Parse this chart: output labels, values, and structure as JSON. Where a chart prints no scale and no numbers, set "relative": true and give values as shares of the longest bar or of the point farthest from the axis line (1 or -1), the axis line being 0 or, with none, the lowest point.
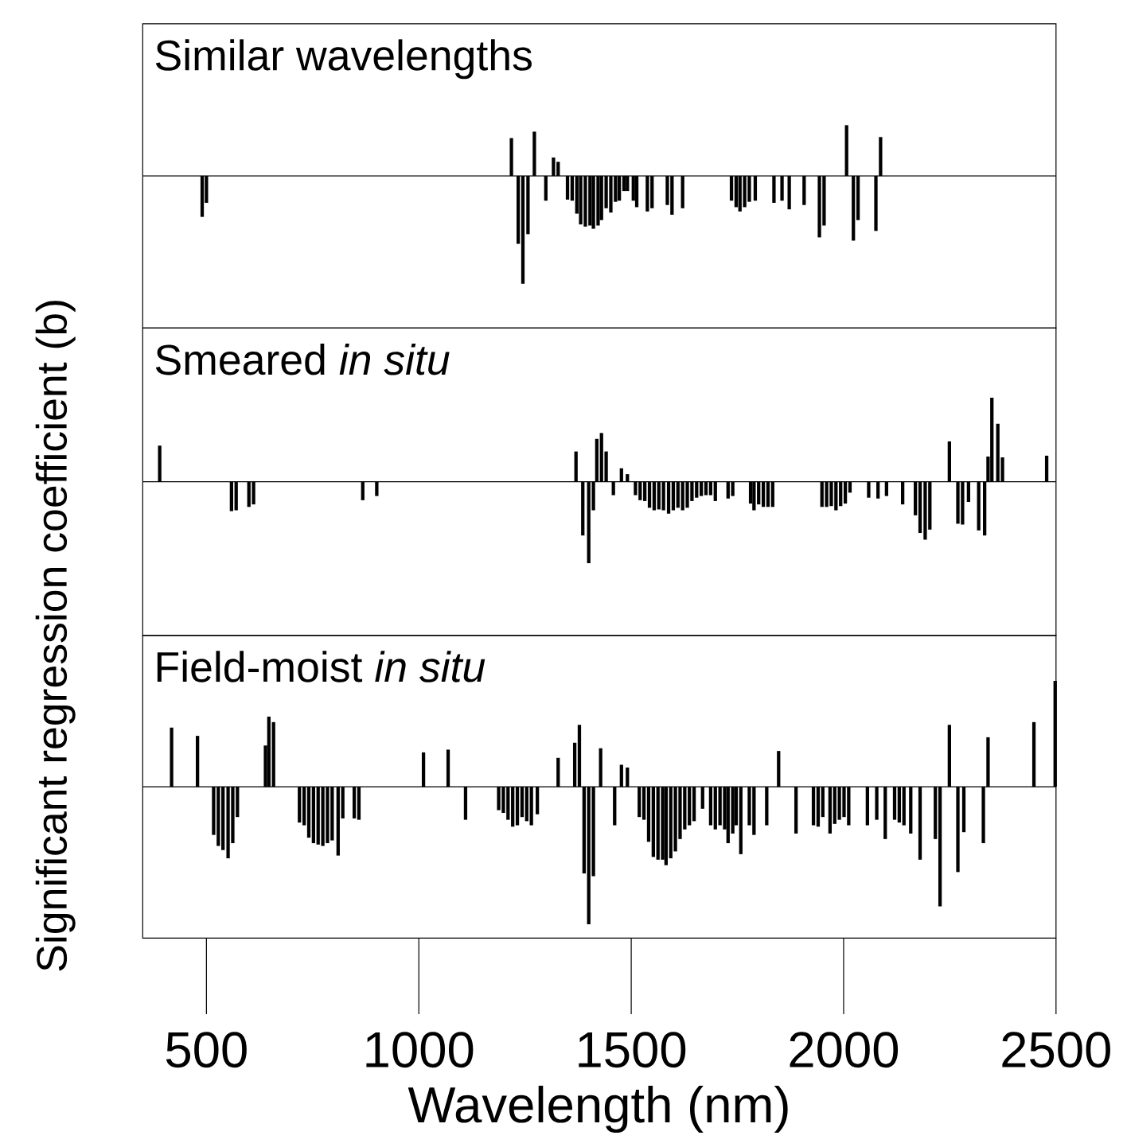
{
  "chart_data": [
    {
      "type": "bar",
      "title": "Similar wavelengths",
      "color": "#000000",
      "relative": true,
      "xlim": [
        350,
        2500
      ],
      "tick_labels": false,
      "x": [
        490,
        500,
        1218,
        1234,
        1245,
        1257,
        1272,
        1299,
        1317,
        1328,
        1350,
        1361,
        1372,
        1381,
        1392,
        1403,
        1411,
        1422,
        1430,
        1441,
        1452,
        1463,
        1472,
        1483,
        1491,
        1505,
        1513,
        1538,
        1549,
        1585,
        1596,
        1621,
        1736,
        1747,
        1756,
        1767,
        1778,
        1792,
        1836,
        1855,
        1872,
        1907,
        1943,
        1954,
        2007,
        2023,
        2034,
        2076,
        2087
      ],
      "values": [
        -0.38,
        -0.25,
        0.35,
        -0.63,
        -1.0,
        -0.54,
        0.41,
        -0.23,
        0.17,
        0.13,
        -0.22,
        -0.23,
        -0.35,
        -0.45,
        -0.47,
        -0.46,
        -0.49,
        -0.46,
        -0.41,
        -0.3,
        -0.34,
        -0.24,
        -0.23,
        -0.14,
        -0.14,
        -0.23,
        -0.29,
        -0.33,
        -0.3,
        -0.27,
        -0.36,
        -0.3,
        -0.23,
        -0.29,
        -0.33,
        -0.29,
        -0.24,
        -0.23,
        -0.25,
        -0.23,
        -0.31,
        -0.27,
        -0.57,
        -0.46,
        0.47,
        -0.6,
        -0.41,
        -0.51,
        0.36
      ]
    },
    {
      "type": "bar",
      "title": "Smeared *in situ*",
      "ylabel": "Significant regression coefficient (b)",
      "color": "#000000",
      "relative": true,
      "xlim": [
        350,
        2500
      ],
      "tick_labels": false,
      "x": [
        390,
        559,
        570,
        600,
        611,
        868,
        901,
        1370,
        1386,
        1400,
        1411,
        1419,
        1430,
        1441,
        1458,
        1477,
        1491,
        1510,
        1521,
        1532,
        1543,
        1554,
        1565,
        1576,
        1588,
        1599,
        1610,
        1621,
        1632,
        1643,
        1654,
        1665,
        1676,
        1687,
        1698,
        1728,
        1739,
        1781,
        1789,
        1800,
        1811,
        1822,
        1833,
        1949,
        1960,
        1971,
        1982,
        1993,
        2004,
        2015,
        2059,
        2081,
        2101,
        2139,
        2169,
        2180,
        2192,
        2203,
        2249,
        2269,
        2280,
        2294,
        2318,
        2332,
        2340,
        2349,
        2363,
        2374,
        2478
      ],
      "values": [
        0.43,
        -0.35,
        -0.34,
        -0.3,
        -0.27,
        -0.22,
        -0.17,
        0.36,
        -0.64,
        -0.97,
        -0.34,
        0.51,
        0.58,
        0.36,
        -0.16,
        0.16,
        0.09,
        -0.16,
        -0.22,
        -0.23,
        -0.31,
        -0.34,
        -0.33,
        -0.34,
        -0.38,
        -0.34,
        -0.31,
        -0.34,
        -0.31,
        -0.23,
        -0.19,
        -0.17,
        -0.16,
        -0.16,
        -0.23,
        -0.2,
        -0.17,
        -0.26,
        -0.34,
        -0.27,
        -0.3,
        -0.3,
        -0.3,
        -0.3,
        -0.3,
        -0.29,
        -0.34,
        -0.29,
        -0.26,
        -0.13,
        -0.19,
        -0.2,
        -0.17,
        -0.27,
        -0.4,
        -0.61,
        -0.69,
        -0.57,
        0.48,
        -0.5,
        -0.51,
        -0.24,
        -0.58,
        -0.64,
        0.3,
        1.0,
        0.69,
        0.29,
        0.31
      ]
    },
    {
      "type": "bar",
      "title": "Field-moist *in situ*",
      "xlabel": "Wavelength (nm)",
      "color": "#000000",
      "relative": true,
      "xlim": [
        350,
        2500
      ],
      "tick_labels": "x",
      "xticks": [
        500,
        1000,
        1500,
        2000,
        2500
      ],
      "x": [
        418,
        479,
        517,
        528,
        539,
        551,
        562,
        573,
        639,
        647,
        658,
        719,
        730,
        741,
        752,
        763,
        774,
        785,
        796,
        810,
        821,
        848,
        859,
        1011,
        1069,
        1110,
        1188,
        1199,
        1210,
        1221,
        1232,
        1243,
        1254,
        1265,
        1279,
        1328,
        1367,
        1378,
        1389,
        1400,
        1411,
        1428,
        1461,
        1477,
        1491,
        1519,
        1530,
        1541,
        1552,
        1563,
        1574,
        1582,
        1593,
        1604,
        1615,
        1626,
        1637,
        1648,
        1668,
        1687,
        1698,
        1709,
        1720,
        1728,
        1739,
        1747,
        1758,
        1778,
        1789,
        1819,
        1847,
        1888,
        1929,
        1940,
        1951,
        1968,
        1979,
        1990,
        2001,
        2012,
        2056,
        2078,
        2098,
        2120,
        2131,
        2142,
        2158,
        2180,
        2216,
        2227,
        2249,
        2269,
        2283,
        2329,
        2340,
        2448,
        2498
      ],
      "values": [
        0.43,
        0.37,
        -0.35,
        -0.43,
        -0.46,
        -0.52,
        -0.41,
        -0.22,
        0.3,
        0.51,
        0.47,
        -0.26,
        -0.28,
        -0.37,
        -0.41,
        -0.42,
        -0.43,
        -0.41,
        -0.39,
        -0.5,
        -0.23,
        -0.23,
        -0.24,
        0.25,
        0.27,
        -0.24,
        -0.17,
        -0.19,
        -0.24,
        -0.29,
        -0.28,
        -0.22,
        -0.25,
        -0.28,
        -0.2,
        0.21,
        0.32,
        0.45,
        -0.63,
        -1.0,
        -0.65,
        0.28,
        -0.28,
        0.16,
        0.14,
        -0.22,
        -0.24,
        -0.4,
        -0.51,
        -0.53,
        -0.53,
        -0.57,
        -0.52,
        -0.47,
        -0.38,
        -0.31,
        -0.28,
        -0.25,
        -0.16,
        -0.28,
        -0.31,
        -0.28,
        -0.31,
        -0.41,
        -0.34,
        -0.28,
        -0.49,
        -0.28,
        -0.35,
        -0.28,
        0.26,
        -0.34,
        -0.28,
        -0.29,
        -0.22,
        -0.34,
        -0.27,
        -0.24,
        -0.22,
        -0.28,
        -0.28,
        -0.24,
        -0.38,
        -0.24,
        -0.26,
        -0.28,
        -0.34,
        -0.53,
        -0.38,
        -0.87,
        0.45,
        -0.62,
        -0.33,
        -0.41,
        0.36,
        0.47,
        0.77
      ]
    }
  ]
}
